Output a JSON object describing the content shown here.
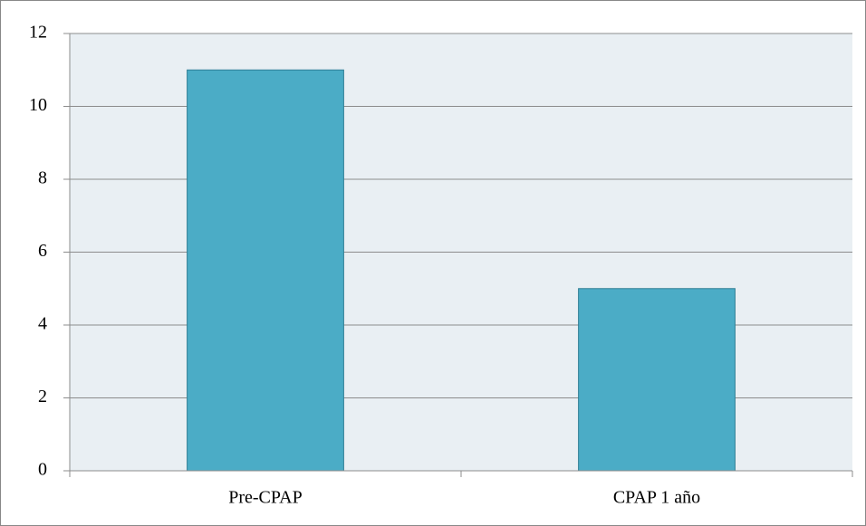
{
  "chart_data": {
    "type": "bar",
    "categories": [
      "Pre-CPAP",
      "CPAP 1 año"
    ],
    "values": [
      11,
      5
    ],
    "color": "#4bacc6",
    "ylim": [
      0,
      12
    ],
    "yticks": [
      0,
      2,
      4,
      6,
      8,
      10,
      12
    ],
    "grid": true
  }
}
